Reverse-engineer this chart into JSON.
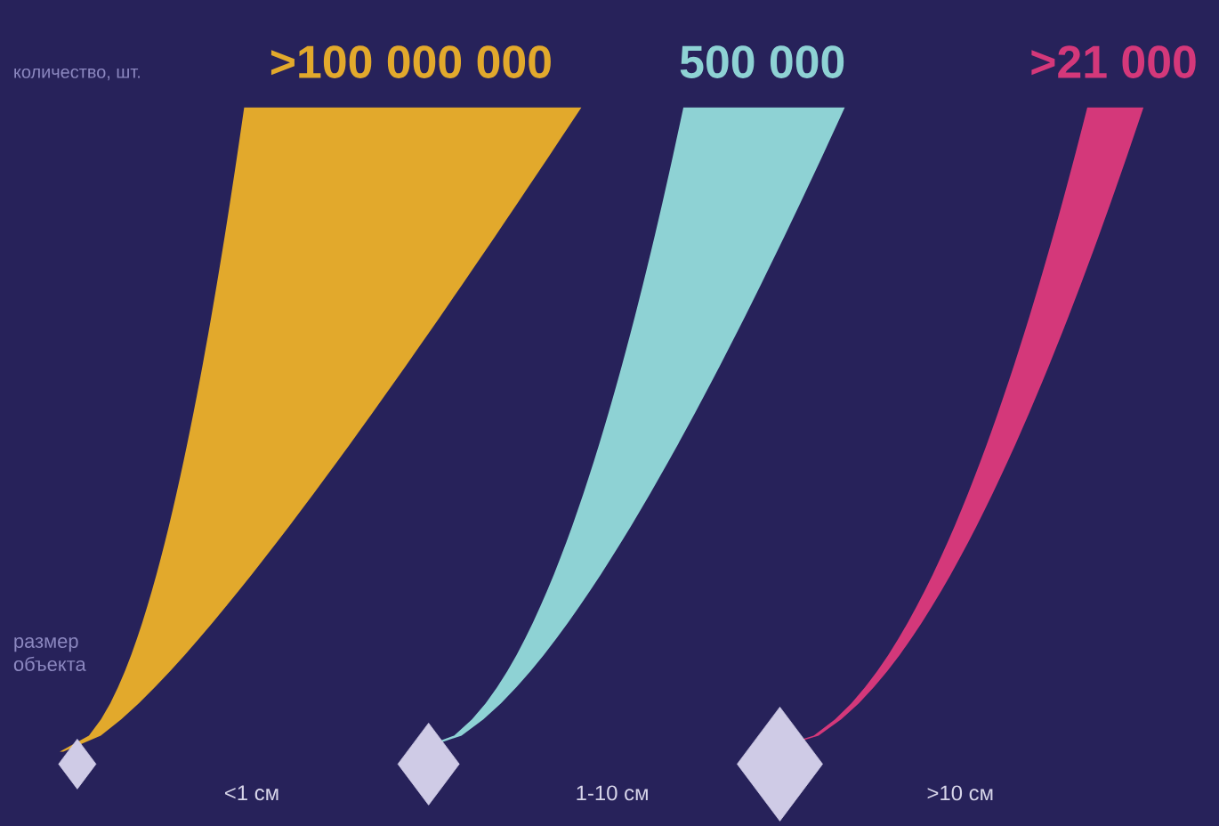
{
  "chart_data": {
    "type": "other",
    "ylabel": "количество, шт.",
    "xlabel": "размер объекта",
    "categories": [
      "<1 см",
      "1-10 см",
      ">10 см"
    ],
    "values": [
      100000000,
      500000,
      21000
    ],
    "value_labels": [
      ">100 000 000",
      "500 000",
      ">21 000"
    ],
    "colors": [
      "#e2a92c",
      "#8ed2d4",
      "#d4387a"
    ]
  }
}
